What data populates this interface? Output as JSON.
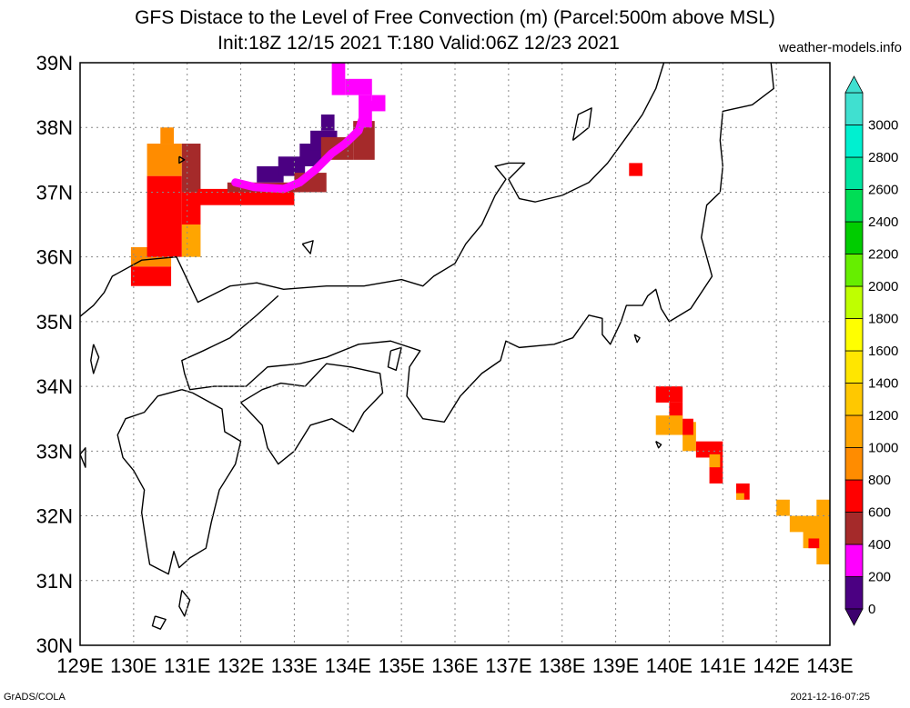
{
  "title_line1": "GFS Distace to the Level of Free Convection (m) (Parcel:500m above MSL)",
  "title_line2": "Init:18Z 12/15 2021 T:180 Valid:06Z 12/23 2021",
  "site": "weather-models.info",
  "credit": "GrADS/COLA",
  "timestamp": "2021-12-16-07:25",
  "map": {
    "lon_range": [
      129,
      143
    ],
    "lat_range": [
      30,
      39
    ],
    "lon_labels": [
      "129E",
      "130E",
      "131E",
      "132E",
      "133E",
      "134E",
      "135E",
      "136E",
      "137E",
      "138E",
      "139E",
      "140E",
      "141E",
      "142E",
      "143E"
    ],
    "lat_labels": [
      "39N",
      "38N",
      "37N",
      "36N",
      "35N",
      "34N",
      "33N",
      "32N",
      "31N",
      "30N"
    ],
    "gridlines": "dotted",
    "coastline_color": "#000000"
  },
  "colorbar": {
    "levels": [
      0,
      200,
      400,
      600,
      800,
      1000,
      1200,
      1400,
      1600,
      1800,
      2000,
      2200,
      2400,
      2600,
      2800,
      3000
    ],
    "labels": [
      "0",
      "200",
      "400",
      "600",
      "800",
      "1000",
      "1200",
      "1400",
      "1600",
      "1800",
      "2000",
      "2200",
      "2400",
      "2600",
      "2800",
      "3000"
    ],
    "colors": [
      "#4b0082",
      "#ff00ff",
      "#a52a2a",
      "#ff0000",
      "#ff8c00",
      "#ffa500",
      "#ffc800",
      "#ffe600",
      "#ffff00",
      "#bfff00",
      "#66ee00",
      "#00cc00",
      "#00dd55",
      "#00e6a0",
      "#00f0d0",
      "#40e0d0"
    ],
    "under_color": "#3c006e",
    "over_color": "#40e0d0"
  },
  "fields": [
    {
      "lon": 129.95,
      "lat": 35.85,
      "w": 0.75,
      "h": 0.3,
      "c": "#ff8c00"
    },
    {
      "lon": 129.95,
      "lat": 35.55,
      "w": 0.75,
      "h": 0.3,
      "c": "#ff0000"
    },
    {
      "lon": 130.25,
      "lat": 36.0,
      "w": 0.65,
      "h": 1.25,
      "c": "#ff0000"
    },
    {
      "lon": 130.25,
      "lat": 37.25,
      "w": 0.65,
      "h": 0.5,
      "c": "#ff8c00"
    },
    {
      "lon": 130.5,
      "lat": 37.75,
      "w": 0.25,
      "h": 0.25,
      "c": "#ff8c00"
    },
    {
      "lon": 130.9,
      "lat": 36.0,
      "w": 0.35,
      "h": 0.5,
      "c": "#ffa500"
    },
    {
      "lon": 130.9,
      "lat": 36.5,
      "w": 0.35,
      "h": 0.5,
      "c": "#ff0000"
    },
    {
      "lon": 130.9,
      "lat": 37.0,
      "w": 0.35,
      "h": 0.75,
      "c": "#a52a2a"
    },
    {
      "lon": 131.2,
      "lat": 36.8,
      "w": 1.8,
      "h": 0.25,
      "c": "#ff0000"
    },
    {
      "lon": 131.75,
      "lat": 37.0,
      "w": 1.5,
      "h": 0.15,
      "c": "#a52a2a"
    },
    {
      "lon": 132.3,
      "lat": 37.15,
      "w": 0.5,
      "h": 0.25,
      "c": "#4b0082"
    },
    {
      "lon": 132.7,
      "lat": 37.25,
      "w": 0.5,
      "h": 0.3,
      "c": "#4b0082"
    },
    {
      "lon": 133.1,
      "lat": 37.4,
      "w": 0.45,
      "h": 0.35,
      "c": "#4b0082"
    },
    {
      "lon": 133.3,
      "lat": 37.65,
      "w": 0.5,
      "h": 0.3,
      "c": "#4b0082"
    },
    {
      "lon": 133.5,
      "lat": 37.95,
      "w": 0.25,
      "h": 0.25,
      "c": "#4b0082"
    },
    {
      "lon": 133.0,
      "lat": 37.0,
      "w": 0.6,
      "h": 0.3,
      "c": "#a52a2a"
    },
    {
      "lon": 133.5,
      "lat": 37.5,
      "w": 0.6,
      "h": 0.35,
      "c": "#a52a2a"
    },
    {
      "lon": 134.1,
      "lat": 37.5,
      "w": 0.4,
      "h": 0.6,
      "c": "#a52a2a"
    },
    {
      "lon": 133.7,
      "lat": 38.5,
      "w": 0.25,
      "h": 0.5,
      "c": "#ff00ff"
    },
    {
      "lon": 133.95,
      "lat": 38.5,
      "w": 0.5,
      "h": 0.25,
      "c": "#ff00ff"
    },
    {
      "lon": 134.2,
      "lat": 38.0,
      "w": 0.25,
      "h": 0.5,
      "c": "#ff00ff"
    },
    {
      "lon": 134.45,
      "lat": 38.25,
      "w": 0.25,
      "h": 0.25,
      "c": "#ff00ff"
    },
    {
      "lon": 139.25,
      "lat": 37.25,
      "w": 0.25,
      "h": 0.2,
      "c": "#ff0000"
    },
    {
      "lon": 139.75,
      "lat": 33.75,
      "w": 0.5,
      "h": 0.25,
      "c": "#ff0000"
    },
    {
      "lon": 140.0,
      "lat": 33.5,
      "w": 0.25,
      "h": 0.25,
      "c": "#ff0000"
    },
    {
      "lon": 139.75,
      "lat": 33.25,
      "w": 0.5,
      "h": 0.3,
      "c": "#ffa500"
    },
    {
      "lon": 140.25,
      "lat": 33.0,
      "w": 0.25,
      "h": 0.45,
      "c": "#ffa500"
    },
    {
      "lon": 140.25,
      "lat": 33.25,
      "w": 0.2,
      "h": 0.25,
      "c": "#ff0000"
    },
    {
      "lon": 140.5,
      "lat": 32.9,
      "w": 0.5,
      "h": 0.25,
      "c": "#ff0000"
    },
    {
      "lon": 140.75,
      "lat": 32.5,
      "w": 0.25,
      "h": 0.4,
      "c": "#ff0000"
    },
    {
      "lon": 140.75,
      "lat": 32.75,
      "w": 0.2,
      "h": 0.2,
      "c": "#ffa500"
    },
    {
      "lon": 141.25,
      "lat": 32.25,
      "w": 0.25,
      "h": 0.25,
      "c": "#ff0000"
    },
    {
      "lon": 141.25,
      "lat": 32.25,
      "w": 0.15,
      "h": 0.1,
      "c": "#ffa500"
    },
    {
      "lon": 142.0,
      "lat": 32.0,
      "w": 0.25,
      "h": 0.25,
      "c": "#ffa500"
    },
    {
      "lon": 142.25,
      "lat": 31.75,
      "w": 0.75,
      "h": 0.25,
      "c": "#ffa500"
    },
    {
      "lon": 142.5,
      "lat": 31.5,
      "w": 0.5,
      "h": 0.3,
      "c": "#ffa500"
    },
    {
      "lon": 142.75,
      "lat": 32.0,
      "w": 0.25,
      "h": 0.25,
      "c": "#ffa500"
    },
    {
      "lon": 142.75,
      "lat": 31.25,
      "w": 0.25,
      "h": 0.3,
      "c": "#ffa500"
    },
    {
      "lon": 142.6,
      "lat": 31.5,
      "w": 0.2,
      "h": 0.15,
      "c": "#ff0000"
    }
  ],
  "contours": [
    {
      "c": "#ff00ff",
      "pts": [
        [
          131.9,
          37.15
        ],
        [
          132.25,
          37.08
        ],
        [
          132.8,
          37.05
        ],
        [
          133.1,
          37.15
        ],
        [
          133.4,
          37.35
        ],
        [
          133.7,
          37.6
        ],
        [
          133.95,
          37.75
        ],
        [
          134.2,
          37.95
        ],
        [
          134.3,
          38.2
        ],
        [
          134.45,
          38.35
        ]
      ]
    }
  ],
  "coast": [
    {
      "name": "honshu",
      "pts": [
        [
          129.0,
          35.08
        ],
        [
          129.25,
          35.25
        ],
        [
          129.45,
          35.45
        ],
        [
          129.6,
          35.7
        ],
        [
          130.15,
          35.95
        ],
        [
          130.8,
          36.0
        ],
        [
          131.2,
          35.3
        ],
        [
          131.8,
          35.55
        ],
        [
          132.3,
          35.6
        ],
        [
          132.8,
          35.5
        ],
        [
          133.6,
          35.55
        ],
        [
          134.3,
          35.55
        ],
        [
          135.0,
          35.65
        ],
        [
          135.4,
          35.55
        ],
        [
          135.6,
          35.7
        ],
        [
          136.0,
          35.9
        ],
        [
          136.2,
          36.2
        ],
        [
          136.5,
          36.5
        ],
        [
          136.75,
          36.95
        ],
        [
          136.95,
          37.2
        ],
        [
          136.75,
          37.4
        ],
        [
          137.0,
          37.45
        ],
        [
          137.3,
          37.45
        ],
        [
          137.0,
          37.2
        ],
        [
          137.2,
          36.9
        ],
        [
          137.5,
          36.85
        ],
        [
          138.0,
          36.95
        ],
        [
          138.5,
          37.15
        ],
        [
          138.85,
          37.45
        ],
        [
          139.2,
          37.85
        ],
        [
          139.5,
          38.2
        ],
        [
          139.75,
          38.6
        ],
        [
          139.9,
          39.0
        ]
      ]
    },
    {
      "name": "honshu-pacific",
      "pts": [
        [
          141.9,
          39.0
        ],
        [
          141.95,
          38.6
        ],
        [
          141.55,
          38.35
        ],
        [
          141.0,
          38.25
        ],
        [
          140.95,
          37.8
        ],
        [
          141.0,
          37.4
        ],
        [
          140.95,
          37.0
        ],
        [
          140.7,
          36.8
        ],
        [
          140.6,
          36.3
        ],
        [
          140.8,
          35.7
        ],
        [
          140.4,
          35.2
        ],
        [
          140.0,
          35.0
        ],
        [
          139.85,
          35.2
        ],
        [
          139.75,
          35.5
        ],
        [
          139.6,
          35.4
        ],
        [
          139.5,
          35.25
        ],
        [
          139.2,
          35.25
        ],
        [
          139.1,
          35.0
        ],
        [
          138.9,
          34.65
        ],
        [
          138.75,
          34.8
        ],
        [
          138.75,
          35.05
        ],
        [
          138.5,
          35.1
        ],
        [
          138.2,
          34.75
        ],
        [
          137.85,
          34.65
        ],
        [
          137.2,
          34.6
        ],
        [
          136.95,
          34.7
        ],
        [
          136.85,
          34.4
        ],
        [
          136.5,
          34.2
        ],
        [
          136.1,
          33.85
        ],
        [
          135.8,
          33.45
        ],
        [
          135.4,
          33.5
        ],
        [
          135.1,
          33.85
        ],
        [
          135.15,
          34.3
        ],
        [
          135.35,
          34.55
        ],
        [
          134.8,
          34.7
        ],
        [
          134.2,
          34.65
        ],
        [
          133.6,
          34.45
        ],
        [
          133.1,
          34.35
        ],
        [
          132.5,
          34.3
        ],
        [
          132.1,
          34.0
        ],
        [
          131.5,
          34.0
        ],
        [
          131.05,
          33.95
        ],
        [
          130.95,
          34.2
        ],
        [
          130.9,
          34.4
        ],
        [
          131.3,
          34.55
        ],
        [
          131.8,
          34.75
        ],
        [
          132.3,
          35.1
        ],
        [
          132.7,
          35.4
        ]
      ]
    },
    {
      "name": "shikoku",
      "pts": [
        [
          132.0,
          33.75
        ],
        [
          132.4,
          33.95
        ],
        [
          132.75,
          34.05
        ],
        [
          133.2,
          34.0
        ],
        [
          133.6,
          34.35
        ],
        [
          134.05,
          34.3
        ],
        [
          134.6,
          34.2
        ],
        [
          134.65,
          33.9
        ],
        [
          134.3,
          33.6
        ],
        [
          134.1,
          33.3
        ],
        [
          133.7,
          33.5
        ],
        [
          133.3,
          33.4
        ],
        [
          133.0,
          33.0
        ],
        [
          132.7,
          32.8
        ],
        [
          132.5,
          33.05
        ],
        [
          132.4,
          33.4
        ],
        [
          132.0,
          33.75
        ]
      ]
    },
    {
      "name": "kyushu",
      "pts": [
        [
          130.9,
          33.95
        ],
        [
          130.45,
          33.85
        ],
        [
          130.2,
          33.6
        ],
        [
          129.85,
          33.5
        ],
        [
          129.7,
          33.25
        ],
        [
          129.8,
          32.9
        ],
        [
          130.0,
          32.7
        ],
        [
          130.2,
          32.4
        ],
        [
          130.15,
          32.05
        ],
        [
          130.25,
          31.5
        ],
        [
          130.3,
          31.25
        ],
        [
          130.65,
          31.1
        ],
        [
          130.75,
          31.45
        ],
        [
          130.85,
          31.2
        ],
        [
          131.05,
          31.35
        ],
        [
          131.35,
          31.5
        ],
        [
          131.45,
          31.9
        ],
        [
          131.6,
          32.4
        ],
        [
          131.9,
          32.8
        ],
        [
          132.0,
          33.15
        ],
        [
          131.7,
          33.3
        ],
        [
          131.65,
          33.65
        ],
        [
          131.1,
          33.9
        ],
        [
          130.9,
          33.95
        ]
      ]
    },
    {
      "name": "noto-sado",
      "pts": [
        [
          138.2,
          37.8
        ],
        [
          138.5,
          38.0
        ],
        [
          138.55,
          38.3
        ],
        [
          138.3,
          38.2
        ],
        [
          138.2,
          37.8
        ]
      ]
    },
    {
      "name": "awaji",
      "pts": [
        [
          134.8,
          34.55
        ],
        [
          135.0,
          34.6
        ],
        [
          134.9,
          34.25
        ],
        [
          134.75,
          34.3
        ],
        [
          134.8,
          34.55
        ]
      ]
    },
    {
      "name": "oki",
      "pts": [
        [
          133.15,
          36.2
        ],
        [
          133.35,
          36.25
        ],
        [
          133.3,
          36.05
        ],
        [
          133.15,
          36.2
        ]
      ]
    },
    {
      "name": "izu-oshima",
      "pts": [
        [
          139.35,
          34.8
        ],
        [
          139.45,
          34.75
        ],
        [
          139.4,
          34.68
        ],
        [
          139.35,
          34.8
        ]
      ]
    },
    {
      "name": "hachijo",
      "pts": [
        [
          139.75,
          33.15
        ],
        [
          139.85,
          33.1
        ],
        [
          139.8,
          33.05
        ],
        [
          139.75,
          33.15
        ]
      ]
    },
    {
      "name": "tanegashima",
      "pts": [
        [
          130.9,
          30.85
        ],
        [
          131.05,
          30.7
        ],
        [
          130.95,
          30.45
        ],
        [
          130.85,
          30.6
        ],
        [
          130.9,
          30.85
        ]
      ]
    },
    {
      "name": "yakushima",
      "pts": [
        [
          130.4,
          30.45
        ],
        [
          130.6,
          30.4
        ],
        [
          130.5,
          30.25
        ],
        [
          130.35,
          30.3
        ],
        [
          130.4,
          30.45
        ]
      ]
    },
    {
      "name": "tsushima",
      "pts": [
        [
          129.25,
          34.65
        ],
        [
          129.35,
          34.45
        ],
        [
          129.25,
          34.2
        ],
        [
          129.2,
          34.4
        ],
        [
          129.25,
          34.65
        ]
      ]
    },
    {
      "name": "goto",
      "pts": [
        [
          128.95,
          32.95
        ],
        [
          129.1,
          33.05
        ],
        [
          129.1,
          32.75
        ],
        [
          128.95,
          32.95
        ]
      ]
    },
    {
      "name": "ulleung",
      "pts": [
        [
          130.85,
          37.55
        ],
        [
          130.95,
          37.5
        ],
        [
          130.85,
          37.45
        ],
        [
          130.85,
          37.55
        ]
      ]
    }
  ]
}
